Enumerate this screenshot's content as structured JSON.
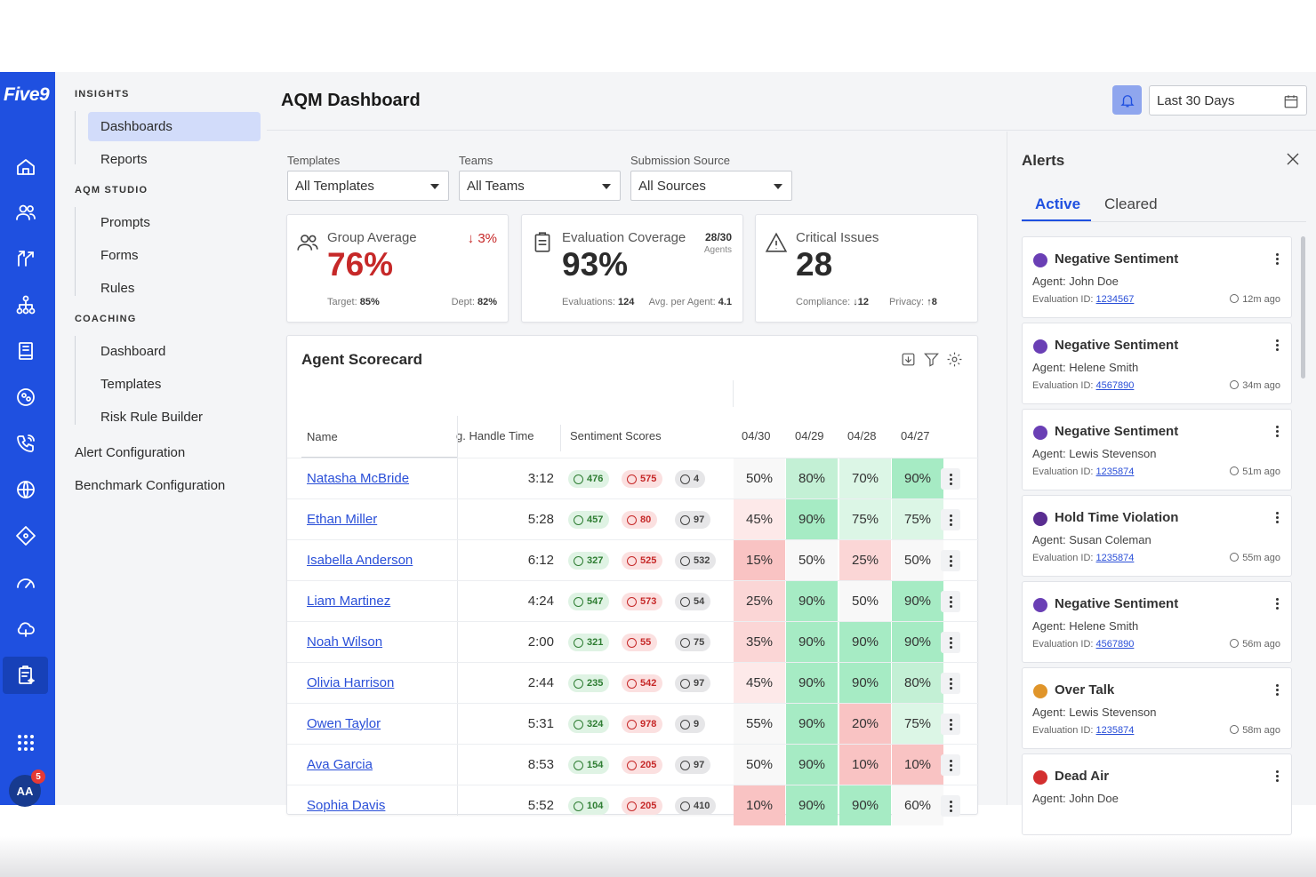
{
  "brand": "Five9",
  "colors": {
    "accent": "#1f50e0",
    "positive": "#2e7d32",
    "negative": "#c62828"
  },
  "rail": {
    "icons": [
      "home-icon",
      "users-icon",
      "routing-icon",
      "hierarchy-icon",
      "book-icon",
      "globe-people-icon",
      "phone-icon",
      "globe-icon",
      "diamond-network-icon",
      "speedometer-icon",
      "cloud-icon",
      "clipboard-sparkle-icon",
      "apps-grid-icon"
    ],
    "avatar": "AA",
    "avatar_badge": "5"
  },
  "nav": {
    "insights_label": "INSIGHTS",
    "insights": [
      "Dashboards",
      "Reports"
    ],
    "studio_label": "AQM STUDIO",
    "studio": [
      "Prompts",
      "Forms",
      "Rules"
    ],
    "coaching_label": "COACHING",
    "coaching": [
      "Dashboard",
      "Templates",
      "Risk Rule Builder"
    ],
    "alert_config": "Alert Configuration",
    "benchmark_config": "Benchmark Configuration"
  },
  "header": {
    "title": "AQM Dashboard",
    "date_range": "Last 30 Days"
  },
  "filters": [
    {
      "label": "Templates",
      "value": "All Templates"
    },
    {
      "label": "Teams",
      "value": "All Teams"
    },
    {
      "label": "Submission Source",
      "value": "All Sources"
    }
  ],
  "stats": {
    "group": {
      "label": "Group Average",
      "value": "76%",
      "delta": "3%",
      "target_label": "Target:",
      "target": "85%",
      "dept_label": "Dept:",
      "dept": "82%"
    },
    "coverage": {
      "label": "Evaluation Coverage",
      "value": "93%",
      "ratio": "28/30",
      "ratio_sub": "Agents",
      "evals_label": "Evaluations:",
      "evals": "124",
      "avg_label": "Avg. per Agent:",
      "avg": "4.1"
    },
    "critical": {
      "label": "Critical Issues",
      "value": "28",
      "compliance_label": "Compliance:",
      "compliance": "12",
      "privacy_label": "Privacy:",
      "privacy": "8"
    }
  },
  "scorecard": {
    "title": "Agent Scorecard",
    "columns": {
      "name": "Name",
      "aht": "g. Handle Time",
      "sentiment": "Sentiment Scores",
      "dates": [
        "04/30",
        "04/29",
        "04/28",
        "04/27"
      ]
    },
    "rows": [
      {
        "name": "Natasha McBride",
        "aht": "3:12",
        "pos": "476",
        "neg": "575",
        "neu": "4",
        "scores": [
          "50%",
          "80%",
          "70%",
          "90%"
        ]
      },
      {
        "name": "Ethan Miller",
        "aht": "5:28",
        "pos": "457",
        "neg": "80",
        "neu": "97",
        "scores": [
          "45%",
          "90%",
          "75%",
          "75%"
        ]
      },
      {
        "name": "Isabella Anderson",
        "aht": "6:12",
        "pos": "327",
        "neg": "525",
        "neu": "532",
        "scores": [
          "15%",
          "50%",
          "25%",
          "50%"
        ]
      },
      {
        "name": "Liam Martinez",
        "aht": "4:24",
        "pos": "547",
        "neg": "573",
        "neu": "54",
        "scores": [
          "25%",
          "90%",
          "50%",
          "90%"
        ]
      },
      {
        "name": "Noah Wilson",
        "aht": "2:00",
        "pos": "321",
        "neg": "55",
        "neu": "75",
        "scores": [
          "35%",
          "90%",
          "90%",
          "90%"
        ]
      },
      {
        "name": "Olivia Harrison",
        "aht": "2:44",
        "pos": "235",
        "neg": "542",
        "neu": "97",
        "scores": [
          "45%",
          "90%",
          "90%",
          "80%"
        ]
      },
      {
        "name": "Owen Taylor",
        "aht": "5:31",
        "pos": "324",
        "neg": "978",
        "neu": "9",
        "scores": [
          "55%",
          "90%",
          "20%",
          "75%"
        ]
      },
      {
        "name": "Ava Garcia",
        "aht": "8:53",
        "pos": "154",
        "neg": "205",
        "neu": "97",
        "scores": [
          "50%",
          "90%",
          "10%",
          "10%"
        ]
      },
      {
        "name": "Sophia Davis",
        "aht": "5:52",
        "pos": "104",
        "neg": "205",
        "neu": "410",
        "scores": [
          "10%",
          "90%",
          "90%",
          "60%"
        ]
      }
    ]
  },
  "alerts": {
    "title": "Alerts",
    "tabs": [
      "Active",
      "Cleared"
    ],
    "evaluation_label": "Evaluation ID:",
    "items": [
      {
        "title": "Negative Sentiment",
        "agent": "Agent: John Doe",
        "eval_id": "1234567",
        "time": "12m ago",
        "color": "#6a3fb5"
      },
      {
        "title": "Negative Sentiment",
        "agent": "Agent: Helene Smith",
        "eval_id": "4567890",
        "time": "34m ago",
        "color": "#6a3fb5"
      },
      {
        "title": "Negative Sentiment",
        "agent": "Agent: Lewis Stevenson",
        "eval_id": "1235874",
        "time": "51m ago",
        "color": "#6a3fb5"
      },
      {
        "title": "Hold Time Violation",
        "agent": "Agent: Susan Coleman",
        "eval_id": "1235874",
        "time": "55m ago",
        "color": "#5a2d91"
      },
      {
        "title": "Negative Sentiment",
        "agent": "Agent: Helene Smith",
        "eval_id": "4567890",
        "time": "56m ago",
        "color": "#6a3fb5"
      },
      {
        "title": "Over Talk",
        "agent": "Agent: Lewis Stevenson",
        "eval_id": "1235874",
        "time": "58m ago",
        "color": "#e0952a"
      },
      {
        "title": "Dead Air",
        "agent": "Agent: John Doe",
        "eval_id": "",
        "time": "",
        "color": "#d32f2f"
      }
    ]
  }
}
